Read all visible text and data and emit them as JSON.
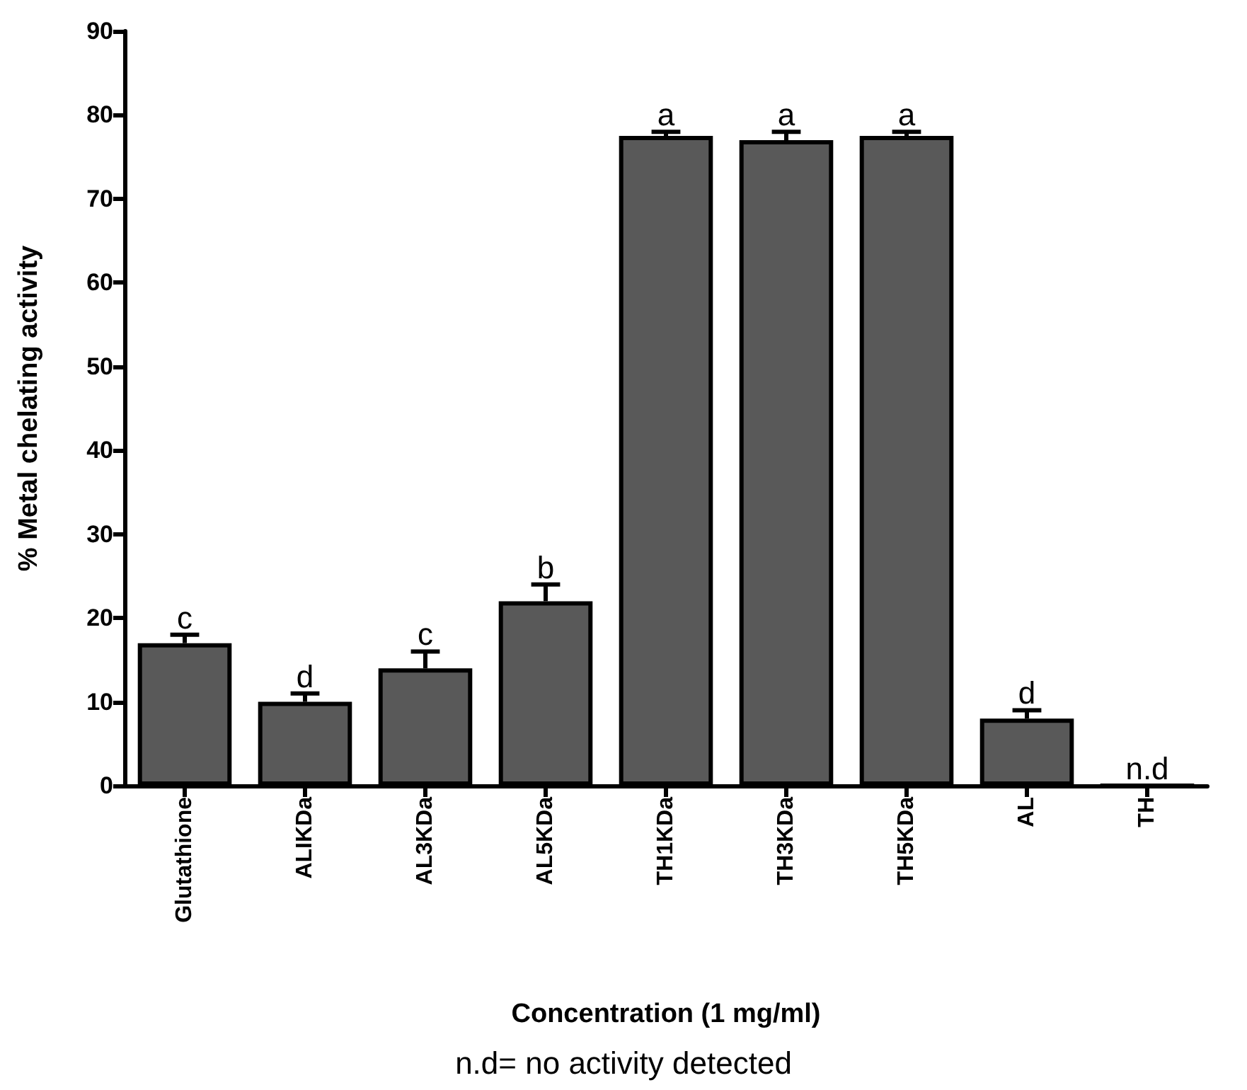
{
  "chart_data": {
    "type": "bar",
    "xlabel": "Concentration (1 mg/ml)",
    "ylabel": "% Metal chelating activity",
    "categories": [
      "Glutathione",
      "ALIKDa",
      "AL3KDa",
      "AL5KDa",
      "TH1KDa",
      "TH3KDa",
      "TH5KDa",
      "AL",
      "TH"
    ],
    "values": [
      17,
      10,
      14,
      22,
      77.5,
      77,
      77.5,
      8,
      0
    ],
    "errors": [
      1,
      1,
      2,
      2,
      0.5,
      1,
      0.5,
      1,
      null
    ],
    "color": "#595959",
    "ylim": [
      0,
      90
    ],
    "yticks": [
      0,
      10,
      20,
      30,
      40,
      50,
      60,
      70,
      80,
      90
    ],
    "grid": false,
    "annotations": [
      {
        "text": "c",
        "x": "Glutathione",
        "y": 18
      },
      {
        "text": "d",
        "x": "ALIKDa",
        "y": 11
      },
      {
        "text": "c",
        "x": "AL3KDa",
        "y": 16
      },
      {
        "text": "b",
        "x": "AL5KDa",
        "y": 24
      },
      {
        "text": "a",
        "x": "TH1KDa",
        "y": 78
      },
      {
        "text": "a",
        "x": "TH3KDa",
        "y": 78
      },
      {
        "text": "a",
        "x": "TH5KDa",
        "y": 78
      },
      {
        "text": "d",
        "x": "AL",
        "y": 9
      },
      {
        "text": "n.d",
        "x": "TH",
        "y": 0
      },
      "n.d= no activity detected"
    ]
  }
}
